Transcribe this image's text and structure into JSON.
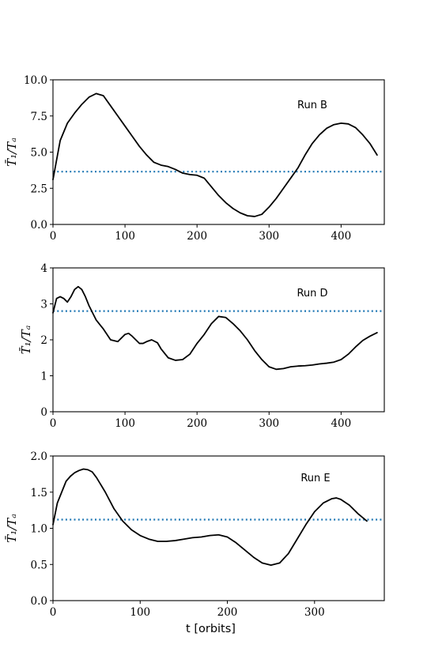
{
  "chart_data": [
    {
      "type": "line",
      "annotation": "Run B",
      "ylabel": "T̄₁/Tₐ",
      "xlim": [
        0,
        460
      ],
      "ylim": [
        0,
        10
      ],
      "xticks": [
        0,
        100,
        200,
        300,
        400
      ],
      "xtick_labels": [
        "0",
        "100",
        "200",
        "300",
        "400"
      ],
      "yticks": [
        0,
        2.5,
        5,
        7.5,
        10
      ],
      "ytick_labels": [
        "0.0",
        "2.5",
        "5.0",
        "7.5",
        "10.0"
      ],
      "reference_line": 3.65,
      "series": [
        {
          "x": [
            0,
            10,
            20,
            30,
            40,
            50,
            60,
            70,
            80,
            90,
            100,
            110,
            120,
            130,
            140,
            150,
            160,
            170,
            180,
            190,
            200,
            210,
            220,
            230,
            240,
            250,
            260,
            270,
            280,
            290,
            300,
            310,
            320,
            330,
            340,
            350,
            360,
            370,
            380,
            390,
            400,
            410,
            420,
            430,
            440,
            450
          ],
          "y": [
            3.1,
            5.8,
            7.0,
            7.7,
            8.3,
            8.8,
            9.05,
            8.9,
            8.2,
            7.5,
            6.8,
            6.1,
            5.4,
            4.8,
            4.3,
            4.1,
            4.0,
            3.8,
            3.55,
            3.45,
            3.4,
            3.2,
            2.6,
            2.0,
            1.5,
            1.1,
            0.8,
            0.6,
            0.55,
            0.7,
            1.2,
            1.8,
            2.5,
            3.2,
            3.9,
            4.8,
            5.6,
            6.2,
            6.65,
            6.9,
            7.0,
            6.95,
            6.7,
            6.2,
            5.6,
            4.8
          ]
        }
      ]
    },
    {
      "type": "line",
      "annotation": "Run D",
      "ylabel": "T̄₁/Tₐ",
      "xlim": [
        0,
        460
      ],
      "ylim": [
        0,
        4
      ],
      "xticks": [
        0,
        100,
        200,
        300,
        400
      ],
      "xtick_labels": [
        "0",
        "100",
        "200",
        "300",
        "400"
      ],
      "yticks": [
        0,
        1,
        2,
        3,
        4
      ],
      "ytick_labels": [
        "0",
        "1",
        "2",
        "3",
        "4"
      ],
      "reference_line": 2.8,
      "series": [
        {
          "x": [
            0,
            5,
            10,
            15,
            20,
            25,
            30,
            35,
            40,
            45,
            50,
            60,
            70,
            80,
            90,
            100,
            105,
            110,
            120,
            125,
            130,
            137,
            145,
            150,
            160,
            170,
            180,
            190,
            200,
            210,
            220,
            230,
            240,
            250,
            260,
            270,
            280,
            290,
            300,
            310,
            320,
            330,
            340,
            350,
            360,
            370,
            380,
            390,
            400,
            410,
            420,
            430,
            440,
            450
          ],
          "y": [
            2.75,
            3.15,
            3.2,
            3.15,
            3.05,
            3.2,
            3.4,
            3.48,
            3.4,
            3.2,
            2.95,
            2.55,
            2.3,
            2.0,
            1.95,
            2.15,
            2.18,
            2.1,
            1.9,
            1.9,
            1.95,
            2.0,
            1.92,
            1.75,
            1.5,
            1.43,
            1.45,
            1.6,
            1.9,
            2.15,
            2.45,
            2.65,
            2.62,
            2.45,
            2.25,
            2.0,
            1.7,
            1.45,
            1.25,
            1.18,
            1.2,
            1.25,
            1.27,
            1.28,
            1.3,
            1.33,
            1.35,
            1.38,
            1.45,
            1.6,
            1.8,
            1.98,
            2.1,
            2.2
          ]
        }
      ]
    },
    {
      "type": "line",
      "annotation": "Run E",
      "ylabel": "T̄₁/Tₐ",
      "xlabel": "t [orbits]",
      "xlim": [
        0,
        380
      ],
      "ylim": [
        0,
        2
      ],
      "xticks": [
        0,
        100,
        200,
        300
      ],
      "xtick_labels": [
        "0",
        "100",
        "200",
        "300"
      ],
      "yticks": [
        0,
        0.5,
        1,
        1.5,
        2
      ],
      "ytick_labels": [
        "0.0",
        "0.5",
        "1.0",
        "1.5",
        "2.0"
      ],
      "reference_line": 1.12,
      "series": [
        {
          "x": [
            0,
            5,
            10,
            15,
            20,
            25,
            30,
            35,
            40,
            45,
            50,
            60,
            70,
            80,
            90,
            100,
            110,
            120,
            130,
            140,
            150,
            160,
            170,
            180,
            190,
            200,
            210,
            220,
            230,
            240,
            250,
            260,
            270,
            280,
            290,
            300,
            310,
            320,
            325,
            330,
            340,
            350,
            360
          ],
          "y": [
            1.05,
            1.35,
            1.5,
            1.65,
            1.72,
            1.77,
            1.8,
            1.82,
            1.81,
            1.78,
            1.7,
            1.5,
            1.27,
            1.1,
            0.98,
            0.9,
            0.85,
            0.82,
            0.82,
            0.83,
            0.85,
            0.87,
            0.88,
            0.9,
            0.91,
            0.88,
            0.8,
            0.7,
            0.6,
            0.52,
            0.49,
            0.52,
            0.65,
            0.85,
            1.05,
            1.23,
            1.35,
            1.41,
            1.42,
            1.4,
            1.32,
            1.2,
            1.1
          ]
        }
      ]
    }
  ]
}
